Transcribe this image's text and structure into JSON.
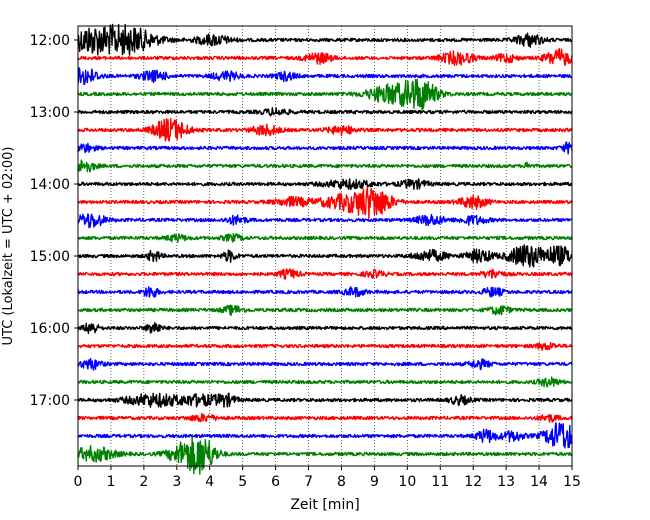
{
  "chart_data": {
    "type": "line",
    "title": "",
    "xlabel": "Zeit  [min]",
    "ylabel": "UTC (Lokalzeit = UTC + 02:00)",
    "xlim": [
      0,
      15
    ],
    "x_ticks": [
      0,
      1,
      2,
      3,
      4,
      5,
      6,
      7,
      8,
      9,
      10,
      11,
      12,
      13,
      14,
      15
    ],
    "y_tick_labels": [
      "12:00",
      "13:00",
      "14:00",
      "15:00",
      "16:00",
      "17:00"
    ],
    "grid": "vertical dotted lines at each minute",
    "trace_colors": [
      "#000000",
      "#ff0000",
      "#0000ff",
      "#008000"
    ],
    "traces": [
      {
        "start": "12:00",
        "color": "#000000",
        "bursts": [
          [
            0.3,
            10,
            0.6
          ],
          [
            1.4,
            14,
            0.9
          ],
          [
            4.1,
            5,
            0.5
          ],
          [
            13.7,
            6,
            0.4
          ]
        ]
      },
      {
        "start": "12:15",
        "color": "#ff0000",
        "bursts": [
          [
            7.3,
            5,
            0.4
          ],
          [
            11.5,
            6,
            0.5
          ],
          [
            13.0,
            4,
            0.3
          ],
          [
            14.6,
            8,
            0.4
          ]
        ]
      },
      {
        "start": "12:30",
        "color": "#0000ff",
        "bursts": [
          [
            0.2,
            8,
            0.4
          ],
          [
            2.3,
            5,
            0.4
          ],
          [
            4.5,
            4,
            0.4
          ],
          [
            6.3,
            4,
            0.3
          ]
        ]
      },
      {
        "start": "12:45",
        "color": "#008000",
        "bursts": [
          [
            9.5,
            9,
            0.7
          ],
          [
            10.4,
            14,
            0.5
          ]
        ]
      },
      {
        "start": "13:00",
        "color": "#000000",
        "bursts": [
          [
            6.0,
            3,
            0.4
          ]
        ]
      },
      {
        "start": "13:15",
        "color": "#ff0000",
        "bursts": [
          [
            2.8,
            11,
            0.5
          ],
          [
            5.7,
            5,
            0.4
          ],
          [
            8.0,
            4,
            0.4
          ]
        ]
      },
      {
        "start": "13:30",
        "color": "#0000ff",
        "bursts": [
          [
            0.2,
            4,
            0.3
          ],
          [
            14.9,
            5,
            0.2
          ]
        ]
      },
      {
        "start": "13:45",
        "color": "#008000",
        "bursts": [
          [
            0.2,
            6,
            0.3
          ],
          [
            13.65,
            9,
            0.05
          ]
        ]
      },
      {
        "start": "14:00",
        "color": "#000000",
        "bursts": [
          [
            8.2,
            4,
            0.7
          ],
          [
            10.2,
            4,
            0.4
          ]
        ]
      },
      {
        "start": "14:15",
        "color": "#ff0000",
        "bursts": [
          [
            6.5,
            4,
            0.5
          ],
          [
            8.3,
            8,
            0.9
          ],
          [
            9.0,
            11,
            0.5
          ],
          [
            12.0,
            6,
            0.4
          ]
        ]
      },
      {
        "start": "14:30",
        "color": "#0000ff",
        "bursts": [
          [
            0.4,
            7,
            0.4
          ],
          [
            4.8,
            4,
            0.3
          ],
          [
            10.7,
            5,
            0.4
          ],
          [
            12.0,
            4,
            0.4
          ]
        ]
      },
      {
        "start": "14:45",
        "color": "#008000",
        "bursts": [
          [
            3.0,
            3,
            0.3
          ],
          [
            4.7,
            3,
            0.3
          ]
        ]
      },
      {
        "start": "15:00",
        "color": "#000000",
        "bursts": [
          [
            2.3,
            5,
            0.2
          ],
          [
            4.6,
            5,
            0.2
          ],
          [
            10.7,
            5,
            0.5
          ],
          [
            12.2,
            6,
            0.4
          ],
          [
            13.6,
            11,
            0.5
          ],
          [
            14.6,
            9,
            0.5
          ]
        ]
      },
      {
        "start": "15:15",
        "color": "#ff0000",
        "bursts": [
          [
            6.4,
            4,
            0.3
          ],
          [
            9.0,
            3,
            0.3
          ],
          [
            12.6,
            4,
            0.3
          ]
        ]
      },
      {
        "start": "15:30",
        "color": "#0000ff",
        "bursts": [
          [
            2.2,
            6,
            0.2
          ],
          [
            8.4,
            4,
            0.3
          ],
          [
            12.6,
            4,
            0.3
          ]
        ]
      },
      {
        "start": "15:45",
        "color": "#008000",
        "bursts": [
          [
            4.7,
            4,
            0.3
          ],
          [
            12.8,
            4,
            0.3
          ]
        ]
      },
      {
        "start": "16:00",
        "color": "#000000",
        "bursts": [
          [
            0.4,
            6,
            0.2
          ],
          [
            2.3,
            6,
            0.2
          ]
        ]
      },
      {
        "start": "16:15",
        "color": "#ff0000",
        "bursts": [
          [
            14.2,
            3,
            0.3
          ]
        ]
      },
      {
        "start": "16:30",
        "color": "#0000ff",
        "bursts": [
          [
            0.4,
            5,
            0.3
          ],
          [
            12.2,
            4,
            0.3
          ]
        ]
      },
      {
        "start": "16:45",
        "color": "#008000",
        "bursts": [
          [
            14.3,
            4,
            0.3
          ]
        ]
      },
      {
        "start": "17:00",
        "color": "#000000",
        "bursts": [
          [
            2.3,
            6,
            0.8
          ],
          [
            3.7,
            5,
            0.6
          ],
          [
            4.5,
            5,
            0.3
          ],
          [
            11.6,
            4,
            0.3
          ]
        ]
      },
      {
        "start": "17:15",
        "color": "#ff0000",
        "bursts": [
          [
            3.8,
            3,
            0.4
          ],
          [
            14.3,
            3,
            0.3
          ]
        ]
      },
      {
        "start": "17:30",
        "color": "#0000ff",
        "bursts": [
          [
            12.4,
            6,
            0.3
          ],
          [
            13.2,
            5,
            0.3
          ],
          [
            14.7,
            14,
            0.5
          ]
        ]
      },
      {
        "start": "17:45",
        "color": "#008000",
        "bursts": [
          [
            0.5,
            7,
            0.6
          ],
          [
            3.3,
            12,
            0.5
          ],
          [
            3.8,
            14,
            0.4
          ]
        ]
      }
    ]
  }
}
